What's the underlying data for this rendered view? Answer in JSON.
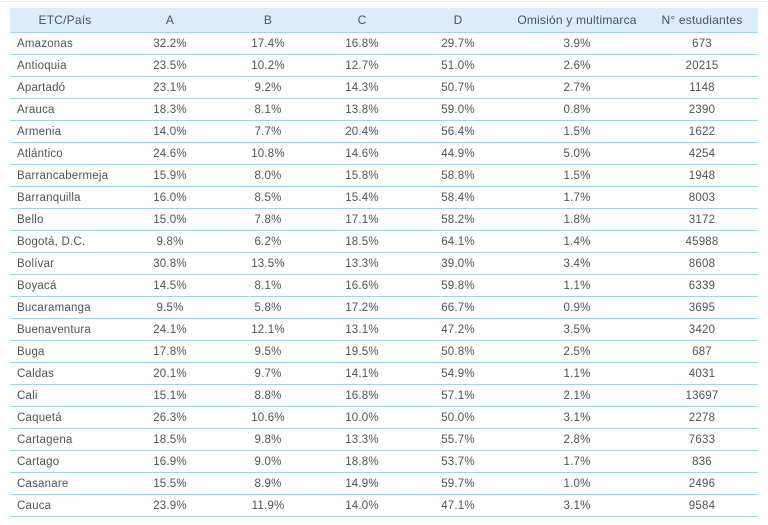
{
  "colors": {
    "header_bg": "#dbedf6",
    "row_line": "#9ed6e4",
    "text": "#515358",
    "top_rule": "#ededed"
  },
  "chart_data": {
    "type": "table",
    "columns": [
      "ETC/País",
      "A",
      "B",
      "C",
      "D",
      "Omisión y multimarca",
      "N° estudiantes"
    ],
    "rows": [
      [
        "Amazonas",
        "32.2%",
        "17.4%",
        "16.8%",
        "29.7%",
        "3.9%",
        "673"
      ],
      [
        "Antioquia",
        "23.5%",
        "10.2%",
        "12.7%",
        "51.0%",
        "2.6%",
        "20215"
      ],
      [
        "Apartadó",
        "23.1%",
        "9.2%",
        "14.3%",
        "50.7%",
        "2.7%",
        "1148"
      ],
      [
        "Arauca",
        "18.3%",
        "8.1%",
        "13.8%",
        "59.0%",
        "0.8%",
        "2390"
      ],
      [
        "Armenia",
        "14.0%",
        "7.7%",
        "20.4%",
        "56.4%",
        "1.5%",
        "1622"
      ],
      [
        "Atlántico",
        "24.6%",
        "10.8%",
        "14.6%",
        "44.9%",
        "5.0%",
        "4254"
      ],
      [
        "Barrancabermeja",
        "15.9%",
        "8.0%",
        "15.8%",
        "58.8%",
        "1.5%",
        "1948"
      ],
      [
        "Barranquilla",
        "16.0%",
        "8.5%",
        "15.4%",
        "58.4%",
        "1.7%",
        "8003"
      ],
      [
        "Bello",
        "15.0%",
        "7.8%",
        "17.1%",
        "58.2%",
        "1.8%",
        "3172"
      ],
      [
        "Bogotá, D.C.",
        "9.8%",
        "6.2%",
        "18.5%",
        "64.1%",
        "1.4%",
        "45988"
      ],
      [
        "Bolívar",
        "30.8%",
        "13.5%",
        "13.3%",
        "39.0%",
        "3.4%",
        "8608"
      ],
      [
        "Boyacá",
        "14.5%",
        "8.1%",
        "16.6%",
        "59.8%",
        "1.1%",
        "6339"
      ],
      [
        "Bucaramanga",
        "9.5%",
        "5.8%",
        "17.2%",
        "66.7%",
        "0.9%",
        "3695"
      ],
      [
        "Buenaventura",
        "24.1%",
        "12.1%",
        "13.1%",
        "47.2%",
        "3.5%",
        "3420"
      ],
      [
        "Buga",
        "17.8%",
        "9.5%",
        "19.5%",
        "50.8%",
        "2.5%",
        "687"
      ],
      [
        "Caldas",
        "20.1%",
        "9.7%",
        "14.1%",
        "54.9%",
        "1.1%",
        "4031"
      ],
      [
        "Cali",
        "15.1%",
        "8.8%",
        "16.8%",
        "57.1%",
        "2.1%",
        "13697"
      ],
      [
        "Caquetá",
        "26.3%",
        "10.6%",
        "10.0%",
        "50.0%",
        "3.1%",
        "2278"
      ],
      [
        "Cartagena",
        "18.5%",
        "9.8%",
        "13.3%",
        "55.7%",
        "2.8%",
        "7633"
      ],
      [
        "Cartago",
        "16.9%",
        "9.0%",
        "18.8%",
        "53.7%",
        "1.7%",
        "836"
      ],
      [
        "Casanare",
        "15.5%",
        "8.9%",
        "14.9%",
        "59.7%",
        "1.0%",
        "2496"
      ],
      [
        "Cauca",
        "23.9%",
        "11.9%",
        "14.0%",
        "47.1%",
        "3.1%",
        "9584"
      ]
    ]
  }
}
